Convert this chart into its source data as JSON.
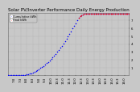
{
  "title": "Solar PV/Inverter Performance Daily Energy Production",
  "bg_color": "#c8c8c8",
  "plot_bg_color": "#c8c8c8",
  "grid_color": "#888888",
  "title_color": "#000000",
  "blue_dots_x": [
    0,
    1,
    2,
    3,
    4,
    5,
    6,
    7,
    8,
    9,
    10,
    11,
    12,
    13,
    14,
    15,
    16,
    17,
    18,
    19,
    20,
    21,
    22,
    23,
    24,
    25,
    26,
    27,
    28,
    29,
    30,
    31,
    32,
    33,
    34,
    35,
    36,
    37,
    38,
    39,
    40,
    41,
    42,
    43,
    44,
    45,
    46,
    47,
    48,
    49,
    50,
    51,
    52,
    53,
    54,
    55,
    56,
    57,
    58,
    59,
    60,
    61,
    62,
    63,
    64,
    65,
    66,
    67,
    68,
    69,
    70,
    71,
    72,
    73,
    74,
    75,
    76,
    77,
    78,
    79
  ],
  "blue_dots_y": [
    0.0,
    0.0,
    0.0,
    0.0,
    0.0,
    0.0,
    0.0,
    0.0,
    0.01,
    0.02,
    0.04,
    0.07,
    0.11,
    0.16,
    0.22,
    0.29,
    0.37,
    0.46,
    0.56,
    0.67,
    0.79,
    0.92,
    1.06,
    1.21,
    1.37,
    1.54,
    1.72,
    1.91,
    2.11,
    2.32,
    2.54,
    2.77,
    3.01,
    3.26,
    3.52,
    3.79,
    4.07,
    4.36,
    4.66,
    4.97,
    5.29,
    5.62,
    5.96,
    6.31,
    6.67,
    7.04,
    7.35,
    7.55,
    7.68,
    7.76,
    7.81,
    7.84,
    7.85,
    7.86,
    7.86,
    7.86,
    7.86,
    7.86,
    7.86,
    7.86,
    7.86,
    7.86,
    7.86,
    7.86,
    7.86,
    7.86,
    7.86,
    7.86,
    7.86,
    7.86,
    7.86,
    7.86,
    7.86,
    7.86,
    7.86,
    7.86,
    7.86,
    7.86,
    7.86,
    7.86
  ],
  "red_dots_x": [
    46,
    47,
    48,
    49,
    50,
    51,
    52,
    53,
    54,
    55,
    56,
    57,
    58,
    59,
    60,
    61,
    62,
    63,
    64,
    65,
    66,
    67,
    68,
    69,
    70,
    71,
    72,
    73,
    74,
    75,
    76,
    77,
    78,
    79
  ],
  "red_dots_y": [
    7.35,
    7.55,
    7.68,
    7.76,
    7.81,
    7.84,
    7.85,
    7.86,
    7.86,
    7.86,
    7.86,
    7.86,
    7.86,
    7.86,
    7.86,
    7.86,
    7.86,
    7.86,
    7.86,
    7.86,
    7.86,
    7.86,
    7.86,
    7.86,
    7.86,
    7.86,
    7.86,
    7.86,
    7.86,
    7.86,
    7.86,
    7.86,
    7.86,
    7.86
  ],
  "xlim": [
    0,
    79
  ],
  "ylim": [
    0,
    8
  ],
  "yticks": [
    1,
    2,
    3,
    4,
    5,
    6,
    7
  ],
  "ylabel_color": "#000000",
  "xlabel_color": "#000000",
  "dot_size": 1.2,
  "title_fontsize": 4.0,
  "tick_fontsize": 2.8,
  "x_tick_positions": [
    4,
    8,
    12,
    16,
    20,
    24,
    28,
    32,
    36,
    40,
    44,
    48,
    52,
    56,
    60,
    64,
    68,
    72,
    76
  ],
  "x_tick_labels": [
    "7:0",
    "7:3",
    "8:0",
    "8:3",
    "9:0",
    "9:3",
    "10:0",
    "10:3",
    "11:0",
    "11:3",
    "12:0",
    "12:3",
    "13:0",
    "13:3",
    "14:0",
    "14:3",
    "15:0",
    "15:3",
    "16:0"
  ],
  "legend_blue": "Cumulative kWh",
  "legend_red": "Final kWh",
  "legend_color": "#000000",
  "spine_color": "#666666"
}
